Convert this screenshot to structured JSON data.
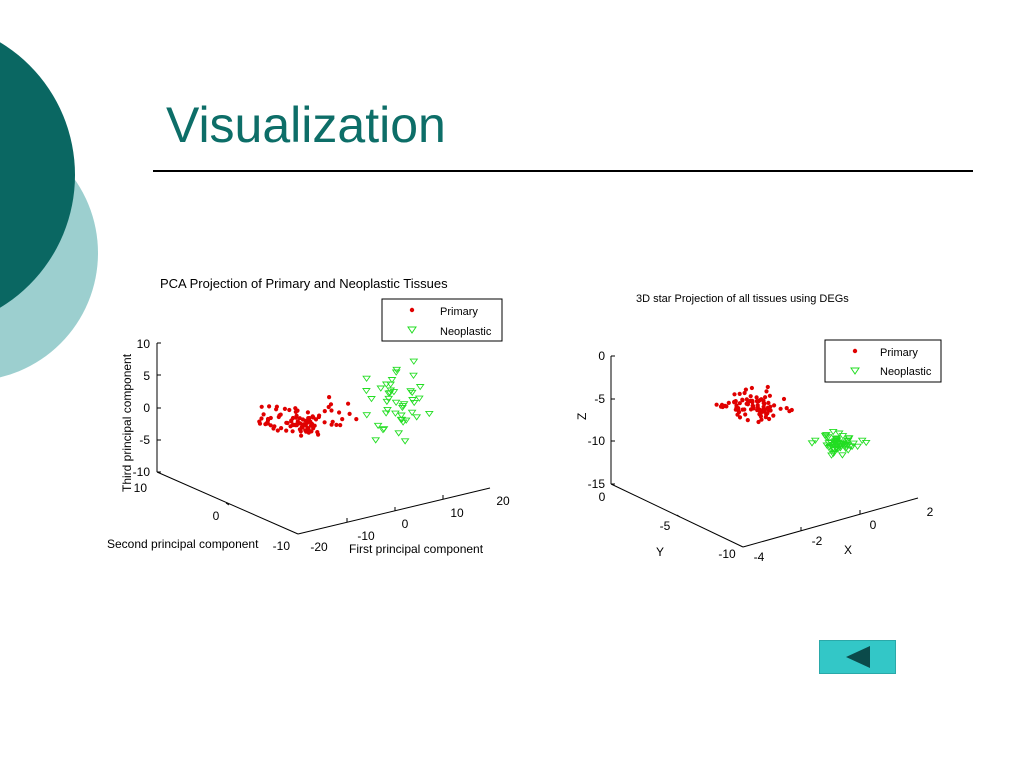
{
  "slide": {
    "title": "Visualization",
    "colors": {
      "title": "#0d6e68",
      "circle_dark": "#0a6762",
      "circle_light": "#9ccfcf",
      "button": "#33c7c7",
      "primary": "#e00000",
      "neoplastic": "#22dd22"
    }
  },
  "nav": {
    "back_button_icon": "left-triangle-icon"
  },
  "chart_data": [
    {
      "type": "scatter",
      "projection": "3d",
      "title": "PCA Projection of Primary and Neoplastic Tissues",
      "axes": {
        "x": {
          "label": "First principal component",
          "ticks": [
            "-20",
            "-10",
            "0",
            "10",
            "20"
          ],
          "range": [
            -20,
            20
          ]
        },
        "y": {
          "label": "Second principal component",
          "ticks": [
            "-10",
            "0",
            "10"
          ],
          "range": [
            -10,
            10
          ]
        },
        "z": {
          "label": "Third principal component",
          "ticks": [
            "10",
            "5",
            "0",
            "-5",
            "-10"
          ],
          "range": [
            -10,
            10
          ]
        }
      },
      "legend": {
        "placement": "top-right",
        "entries": [
          "Primary",
          "Neoplastic"
        ]
      },
      "series": [
        {
          "name": "Primary",
          "marker": "dot",
          "color": "#e00000",
          "count": 95
        },
        {
          "name": "Neoplastic",
          "marker": "triangle-down",
          "color": "#22dd22",
          "count": 45
        }
      ]
    },
    {
      "type": "scatter",
      "projection": "3d",
      "title": "3D star Projection of all tissues using DEGs",
      "axes": {
        "x": {
          "label": "X",
          "ticks": [
            "-4",
            "-2",
            "0",
            "2"
          ],
          "range": [
            -4,
            2
          ]
        },
        "y": {
          "label": "Y",
          "ticks": [
            "0",
            "-5",
            "-10"
          ],
          "range": [
            -10,
            0
          ]
        },
        "z": {
          "label": "Z",
          "ticks": [
            "0",
            "-5",
            "-10",
            "-15"
          ],
          "range": [
            -15,
            0
          ]
        }
      },
      "legend": {
        "placement": "top-right",
        "entries": [
          "Primary",
          "Neoplastic"
        ]
      },
      "series": [
        {
          "name": "Primary",
          "marker": "dot",
          "color": "#e00000",
          "count": 90
        },
        {
          "name": "Neoplastic",
          "marker": "triangle-down",
          "color": "#22dd22",
          "count": 60
        }
      ]
    }
  ]
}
